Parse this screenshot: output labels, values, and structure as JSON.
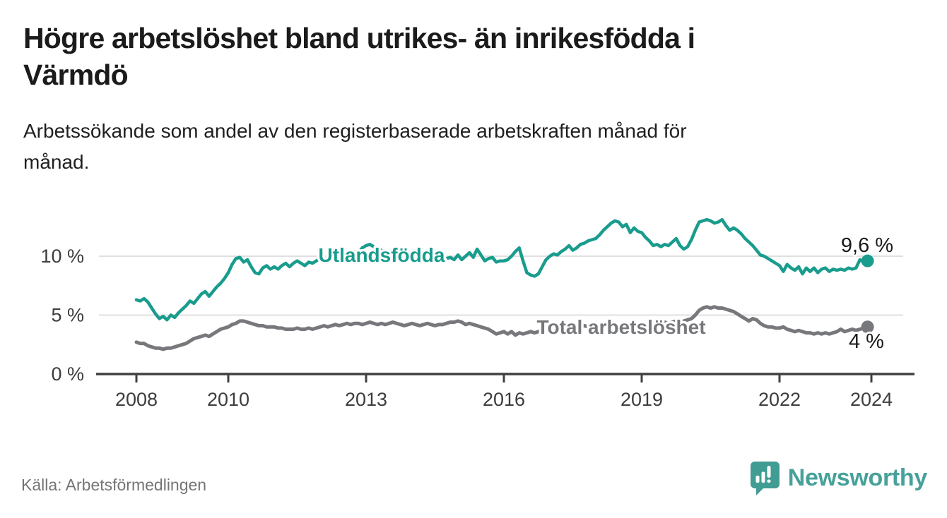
{
  "title": {
    "text": "Högre arbetslöshet bland utrikes- än inrikesfödda i Värmdö",
    "lines": [
      "Högre arbetslöshet bland utrikes- än inrikesfödda i",
      "Värmdö"
    ]
  },
  "subtitle": {
    "text": "Arbetssökande som andel av den registerbaserade arbetskraften månad för månad.",
    "lines": [
      "Arbetssökande som andel av den registerbaserade arbetskraften månad för",
      "månad."
    ]
  },
  "source": "Källa: Arbetsförmedlingen",
  "logo": {
    "text": "Newsworthy",
    "icon": "bar-chart-speech-bubble-icon",
    "color": "#47a19a",
    "icon_color": "#419c94"
  },
  "colors": {
    "foreign_born": "#199c8d",
    "total": "#77787b",
    "title_text": "#1b1b1b",
    "axis": "#404040",
    "axis_text": "#3d3d3d",
    "gridline": "#e0e0e0",
    "source_text": "#757575"
  },
  "chart_data": {
    "type": "line",
    "title": "Högre arbetslöshet bland utrikes- än inrikesfödda i Värmdö",
    "subtitle": "Arbetssökande som andel av den registerbaserade arbetskraften månad för månad.",
    "frequency": "monthly",
    "x_start": "2008-01",
    "x_end": "2023-12",
    "x_tick_years": [
      2008,
      2010,
      2013,
      2016,
      2019,
      2022,
      2024
    ],
    "y_ticks": [
      {
        "value": 0,
        "label": "0 %"
      },
      {
        "value": 5,
        "label": "5 %"
      },
      {
        "value": 10,
        "label": "10 %"
      }
    ],
    "ylim": [
      0,
      14
    ],
    "grid": "horizontal-only",
    "legend_position": "inline-labels",
    "series": [
      {
        "name": "Utlandsfödda",
        "color": "#199c8d",
        "end_label": "9,6 %",
        "end_value": 9.6,
        "values": [
          6.3,
          6.2,
          6.4,
          6.1,
          5.6,
          5.1,
          4.7,
          4.9,
          4.6,
          5.0,
          4.8,
          5.2,
          5.5,
          5.8,
          6.2,
          6.0,
          6.4,
          6.8,
          7.0,
          6.6,
          7.0,
          7.4,
          7.7,
          8.1,
          8.6,
          9.3,
          9.8,
          9.9,
          9.5,
          9.7,
          9.1,
          8.6,
          8.5,
          9.0,
          9.2,
          8.9,
          9.1,
          8.9,
          9.2,
          9.4,
          9.1,
          9.4,
          9.6,
          9.4,
          9.2,
          9.5,
          9.4,
          9.6,
          9.8,
          9.6,
          9.9,
          9.7,
          10.0,
          9.8,
          10.1,
          10.0,
          10.2,
          10.4,
          10.3,
          10.7,
          10.9,
          11.0,
          10.8,
          10.6,
          10.5,
          10.4,
          10.3,
          10.4,
          10.2,
          10.3,
          10.1,
          10.2,
          10.0,
          10.1,
          9.9,
          10.0,
          9.8,
          9.9,
          10.0,
          9.8,
          9.7,
          9.8,
          9.9,
          9.7,
          10.1,
          9.7,
          10.0,
          10.3,
          9.9,
          10.6,
          10.1,
          9.6,
          9.8,
          9.9,
          9.5,
          9.6,
          9.6,
          9.7,
          10.0,
          10.4,
          10.7,
          9.6,
          8.6,
          8.4,
          8.3,
          8.5,
          9.1,
          9.7,
          10.0,
          10.2,
          10.1,
          10.4,
          10.6,
          10.9,
          10.5,
          10.7,
          11.0,
          11.1,
          11.3,
          11.4,
          11.5,
          11.8,
          12.2,
          12.5,
          12.8,
          13.0,
          12.9,
          12.5,
          12.7,
          12.0,
          12.4,
          12.1,
          12.0,
          11.6,
          11.3,
          10.9,
          11.0,
          10.8,
          11.0,
          10.9,
          11.2,
          11.5,
          10.9,
          10.6,
          10.8,
          11.4,
          12.2,
          12.9,
          13.0,
          13.1,
          13.0,
          12.8,
          12.9,
          13.1,
          12.6,
          12.2,
          12.4,
          12.2,
          11.9,
          11.5,
          11.2,
          10.9,
          10.5,
          10.1,
          10.0,
          9.8,
          9.6,
          9.4,
          9.2,
          8.7,
          9.3,
          9.0,
          8.8,
          9.1,
          8.5,
          9.0,
          8.7,
          9.0,
          8.6,
          8.9,
          9.0,
          8.7,
          8.9,
          8.8,
          8.9,
          8.8,
          9.0,
          8.9,
          9.0,
          9.7,
          9.5,
          9.6
        ]
      },
      {
        "name": "Total arbetslöshet",
        "color": "#77787b",
        "end_label": "4 %",
        "end_value": 4.0,
        "values": [
          2.7,
          2.6,
          2.6,
          2.4,
          2.3,
          2.2,
          2.2,
          2.1,
          2.2,
          2.2,
          2.3,
          2.4,
          2.5,
          2.6,
          2.8,
          3.0,
          3.1,
          3.2,
          3.3,
          3.2,
          3.4,
          3.6,
          3.8,
          3.9,
          4.0,
          4.2,
          4.3,
          4.5,
          4.5,
          4.4,
          4.3,
          4.2,
          4.1,
          4.1,
          4.0,
          4.0,
          4.0,
          3.9,
          3.9,
          3.8,
          3.8,
          3.8,
          3.9,
          3.8,
          3.8,
          3.9,
          3.8,
          3.9,
          4.0,
          4.1,
          4.0,
          4.1,
          4.2,
          4.1,
          4.2,
          4.3,
          4.2,
          4.3,
          4.3,
          4.2,
          4.3,
          4.4,
          4.3,
          4.2,
          4.3,
          4.2,
          4.3,
          4.4,
          4.3,
          4.2,
          4.1,
          4.2,
          4.3,
          4.2,
          4.1,
          4.2,
          4.3,
          4.2,
          4.1,
          4.2,
          4.2,
          4.3,
          4.4,
          4.4,
          4.5,
          4.4,
          4.2,
          4.3,
          4.2,
          4.1,
          4.0,
          3.9,
          3.8,
          3.6,
          3.4,
          3.5,
          3.6,
          3.4,
          3.6,
          3.3,
          3.5,
          3.4,
          3.5,
          3.6,
          3.5,
          3.6,
          3.7,
          3.6,
          3.7,
          3.8,
          3.8,
          3.9,
          4.0,
          3.9,
          4.0,
          4.1,
          4.0,
          4.1,
          4.0,
          4.1,
          4.0,
          4.1,
          4.0,
          4.1,
          4.2,
          4.1,
          4.0,
          4.1,
          4.0,
          4.1,
          4.2,
          4.1,
          4.2,
          4.1,
          4.2,
          4.3,
          4.2,
          4.3,
          4.4,
          4.3,
          4.4,
          4.5,
          4.4,
          4.5,
          4.6,
          4.7,
          5.0,
          5.4,
          5.6,
          5.7,
          5.6,
          5.7,
          5.6,
          5.6,
          5.5,
          5.4,
          5.3,
          5.1,
          4.9,
          4.7,
          4.5,
          4.7,
          4.6,
          4.3,
          4.1,
          4.0,
          4.0,
          3.9,
          3.9,
          4.0,
          3.8,
          3.7,
          3.6,
          3.7,
          3.6,
          3.5,
          3.5,
          3.4,
          3.5,
          3.4,
          3.5,
          3.4,
          3.5,
          3.6,
          3.8,
          3.6,
          3.7,
          3.8,
          3.7,
          3.8,
          3.9,
          4.0
        ]
      }
    ]
  }
}
